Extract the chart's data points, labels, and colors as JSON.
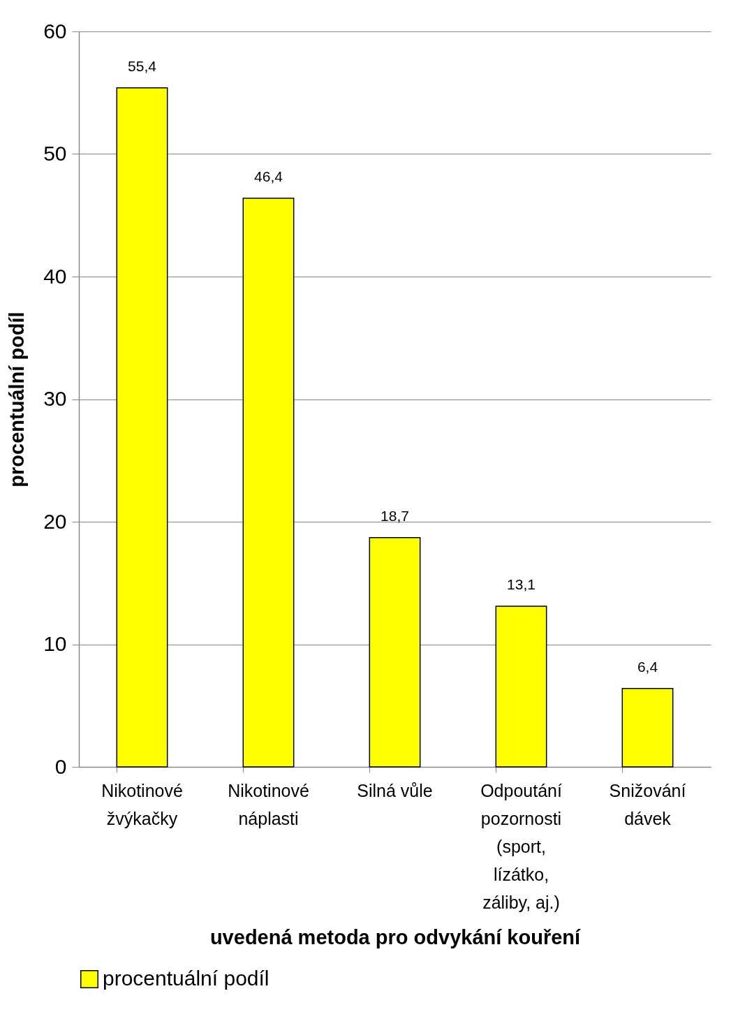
{
  "chart_data": {
    "type": "bar",
    "xlabel": "uvedená metoda pro odvykání kouření",
    "ylabel": "procentuální podíl",
    "categories": [
      "Nikotinové žvýkačky",
      "Nikotinové náplasti",
      "Silná vůle",
      "Odpoutání pozornosti (sport, lízátko, záliby, aj.)",
      "Snižování dávek"
    ],
    "series": [
      {
        "name": "procentuální podíl",
        "color": "#ffff00",
        "values": [
          55.4,
          46.4,
          18.7,
          13.1,
          6.4
        ],
        "value_labels": [
          "55,4",
          "46,4",
          "18,7",
          "13,1",
          "6,4"
        ]
      }
    ],
    "ylim": [
      0,
      60
    ],
    "yticks": [
      0,
      10,
      20,
      30,
      40,
      50,
      60
    ],
    "grid": "y",
    "legend": "bottom"
  }
}
